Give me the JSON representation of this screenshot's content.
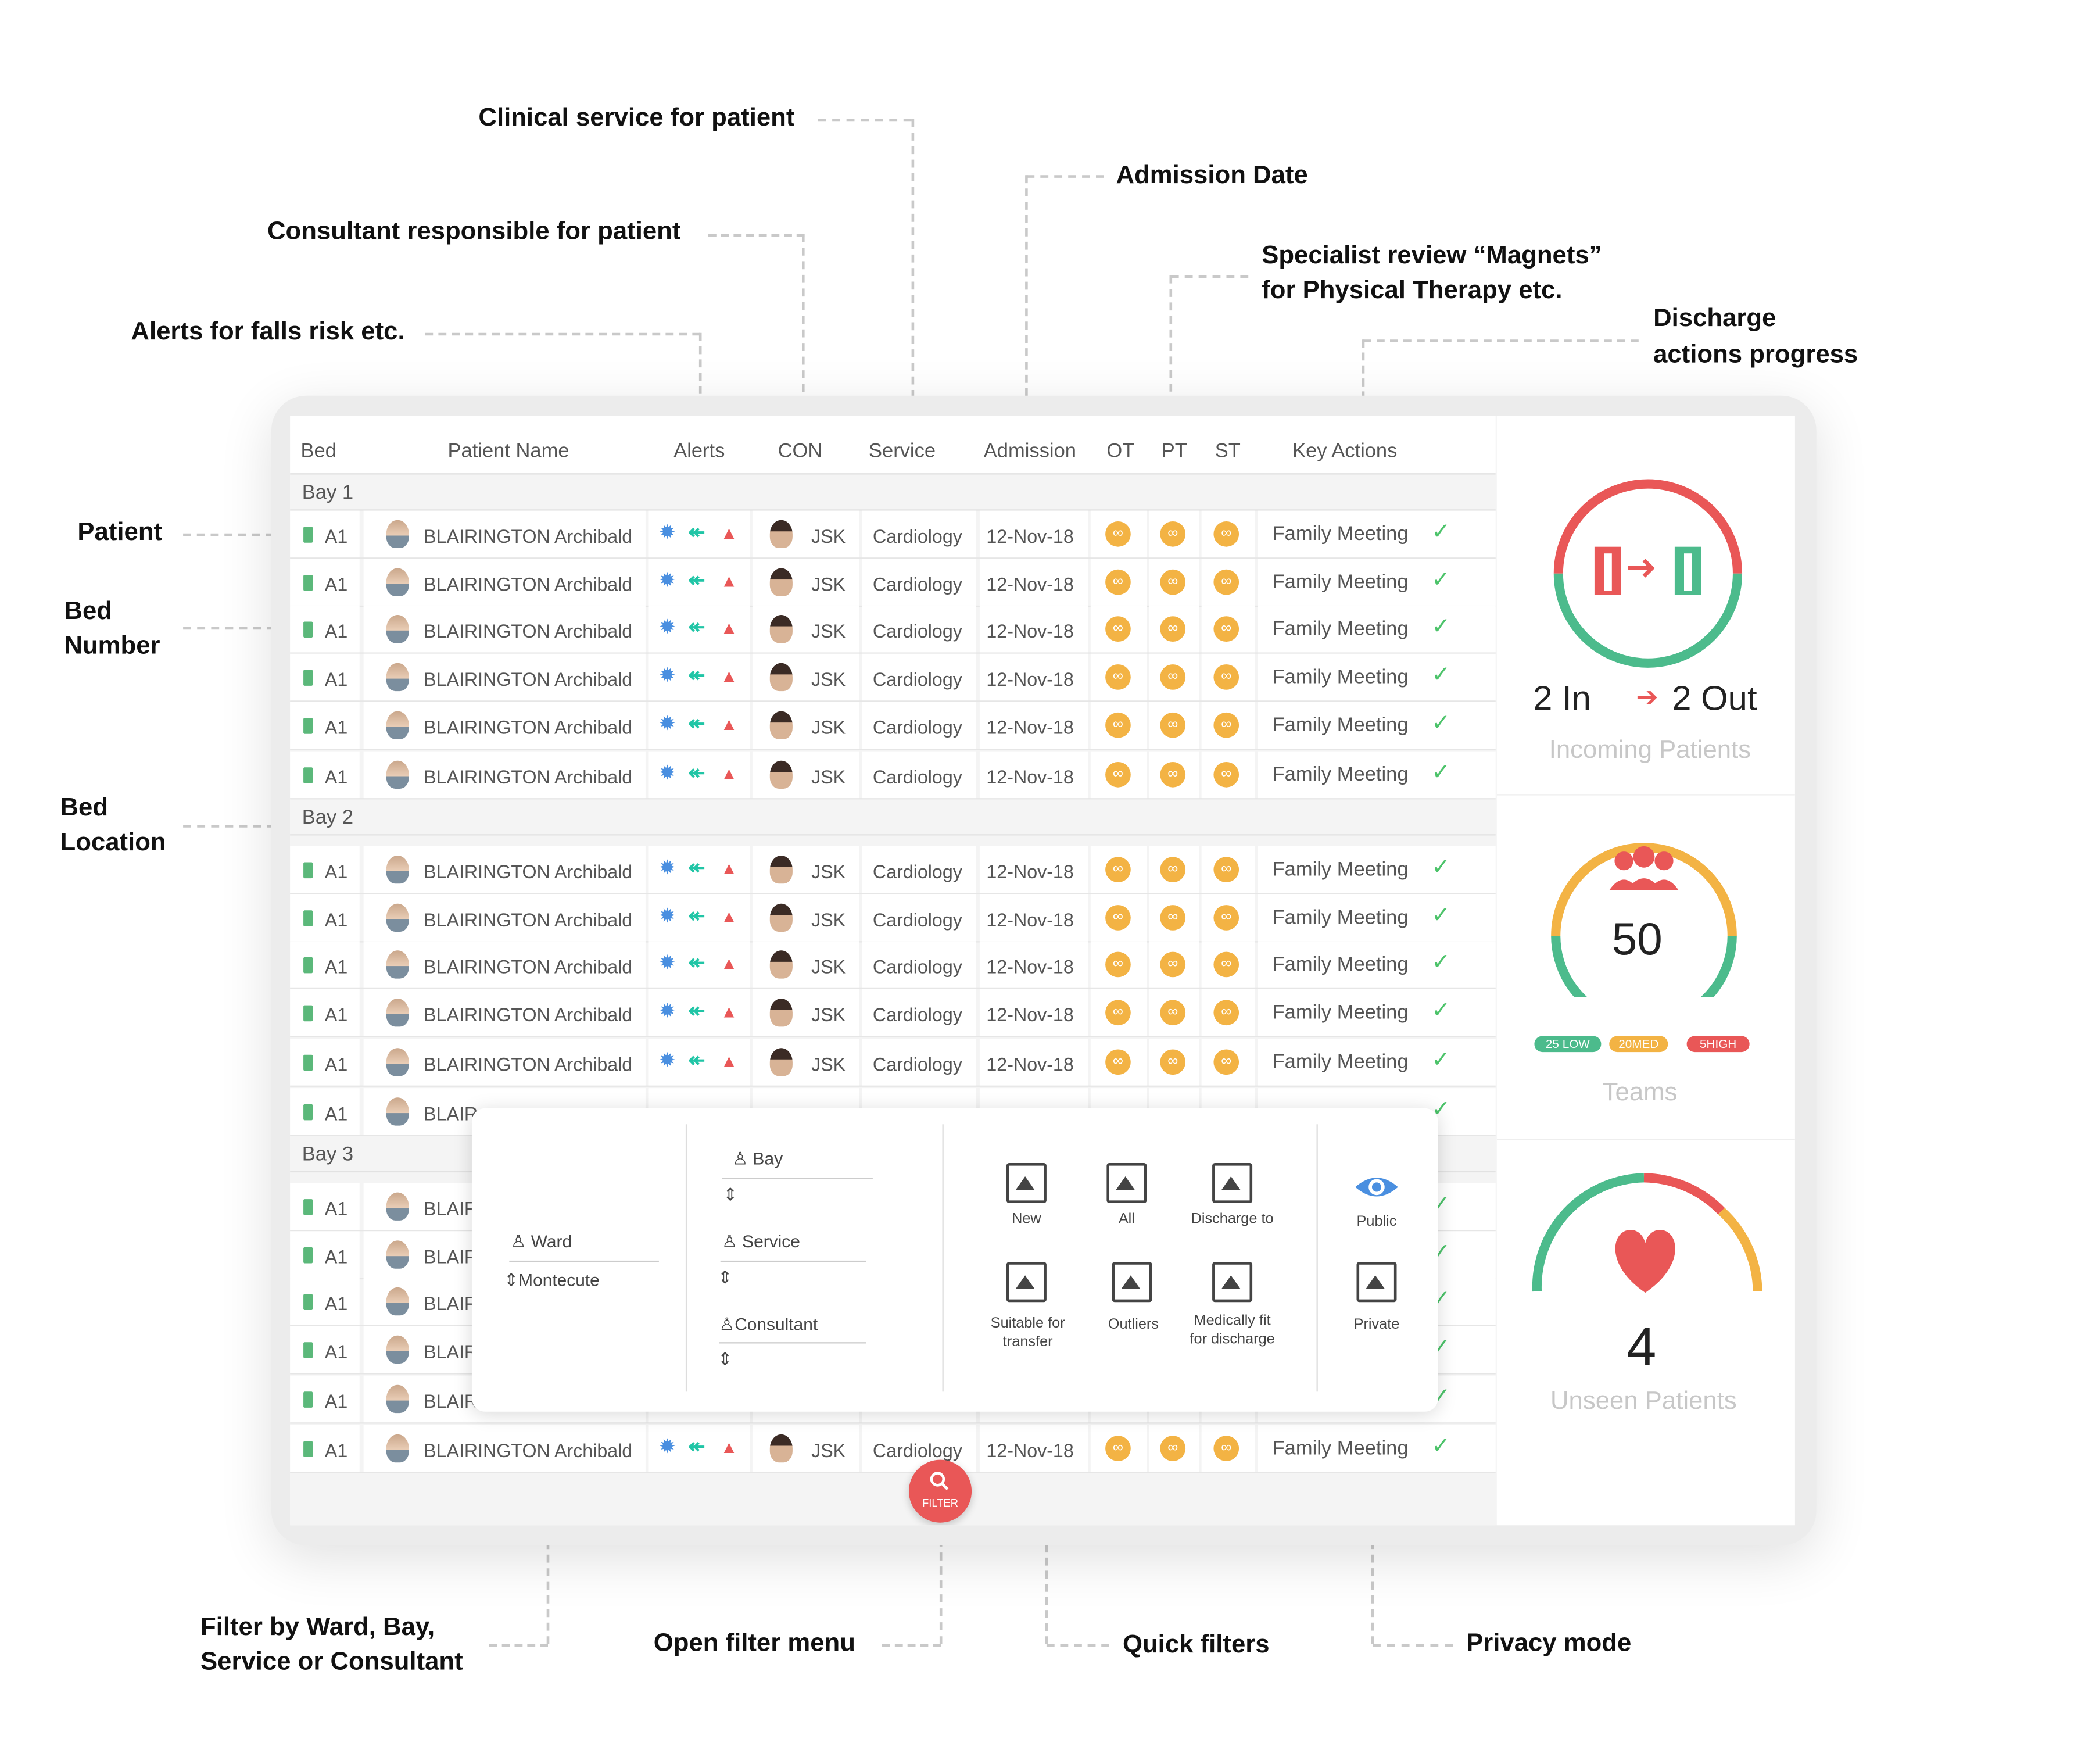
{
  "annotations": {
    "clinical_service": "Clinical service for patient",
    "consultant": "Consultant responsible for patient",
    "alerts": "Alerts for falls risk etc.",
    "admission_date": "Admission Date",
    "magnets_line1": "Specialist review “Magnets”",
    "magnets_line2": "for Physical Therapy etc.",
    "discharge_line1": "Discharge",
    "discharge_line2": "actions progress",
    "patient": "Patient",
    "bed_number_line1": "Bed",
    "bed_number_line2": "Number",
    "bed_location_line1": "Bed",
    "bed_location_line2": "Location",
    "filter_by_line1": "Filter by Ward, Bay,",
    "filter_by_line2": "Service or Consultant",
    "open_filter": "Open filter menu",
    "quick_filters": "Quick filters",
    "privacy_mode": "Privacy mode"
  },
  "table": {
    "headers": {
      "bed": "Bed",
      "patient_name": "Patient Name",
      "alerts": "Alerts",
      "con": "CON",
      "service": "Service",
      "admission": "Admission",
      "ot": "OT",
      "pt": "PT",
      "st": "ST",
      "key_actions": "Key Actions"
    },
    "bays": [
      {
        "label": "Bay 1"
      },
      {
        "label": "Bay 2"
      },
      {
        "label": "Bay 3"
      }
    ],
    "row": {
      "bed": "A1",
      "name": "BLAIRINGTON Archibald",
      "con": "JSK",
      "service": "Cardiology",
      "admission": "12-Nov-18",
      "key_action": "Family Meeting",
      "name_truncated": "BLAIR",
      "magnet_glyph": "∞",
      "check": "✓"
    }
  },
  "side": {
    "incoming": {
      "in": "2 In",
      "out": "2 Out",
      "arrow": "➔",
      "label": "Incoming Patients"
    },
    "teams": {
      "count": "50",
      "low": "25 LOW",
      "med": "20MED",
      "high": "5HIGH",
      "label": "Teams"
    },
    "unseen": {
      "count": "4",
      "label": "Unseen Patients"
    }
  },
  "filter": {
    "ward_label": "Ward",
    "ward_value": "Montecute",
    "bay_label": "Bay",
    "service_label": "Service",
    "consultant_label": "Consultant",
    "quick": {
      "new": "New",
      "all": "All",
      "discharge_to": "Discharge to",
      "suitable_l1": "Suitable for",
      "suitable_l2": "transfer",
      "outliers": "Outliers",
      "medfit_l1": "Medically fit",
      "medfit_l2": "for discharge"
    },
    "privacy": {
      "public": "Public",
      "private": "Private"
    },
    "button_label": "FILTER"
  },
  "colors": {
    "red": "#e95757",
    "green": "#4cbb8c",
    "orange": "#f3b344",
    "blue": "#4a8fe0",
    "teal": "#20c5a6"
  }
}
